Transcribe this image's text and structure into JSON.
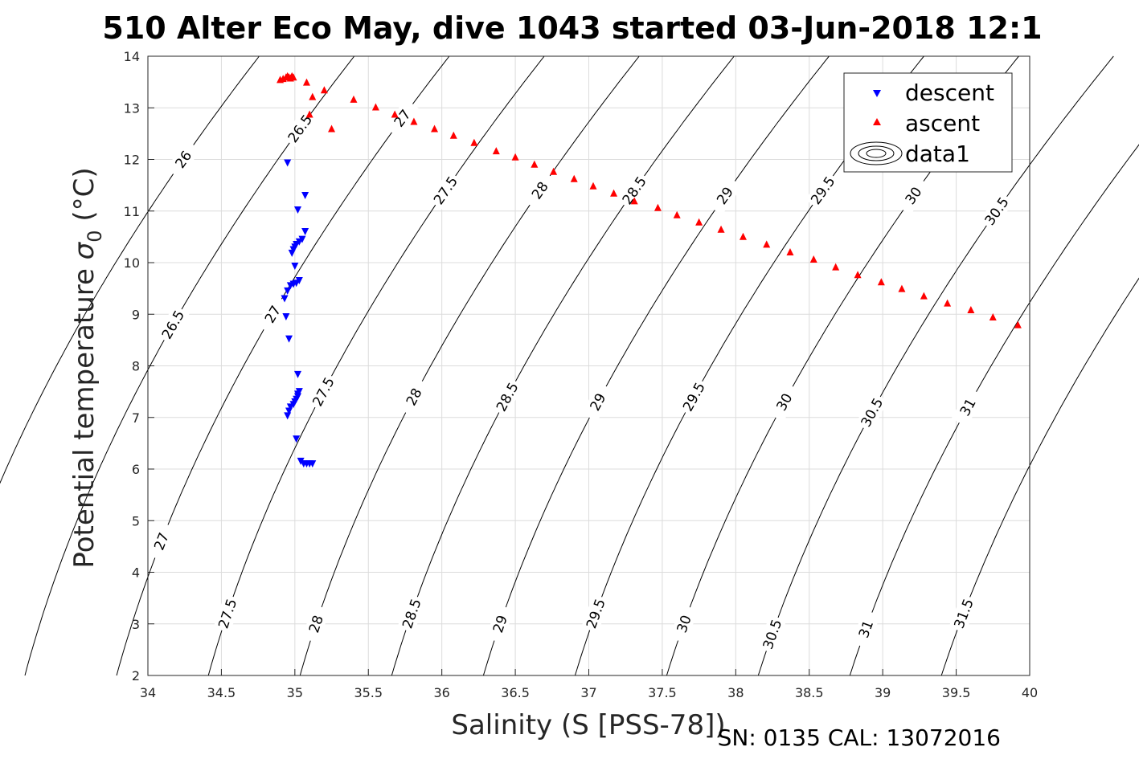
{
  "chart_data": {
    "type": "scatter",
    "title": "510 Alter Eco May, dive 1043 started 03-Jun-2018 12:1",
    "xlabel": "Salinity (S [PSS-78])",
    "ylabel_prefix": "Potential temperature ",
    "ylabel_symbol": "σ",
    "ylabel_sub": "0",
    "ylabel_suffix": " (°C)",
    "xlim": [
      34,
      40
    ],
    "ylim": [
      2,
      14
    ],
    "xticks": [
      "34",
      "34.5",
      "35",
      "35.5",
      "36",
      "36.5",
      "37",
      "37.5",
      "38",
      "38.5",
      "39",
      "39.5",
      "40"
    ],
    "yticks": [
      "2",
      "3",
      "4",
      "5",
      "6",
      "7",
      "8",
      "9",
      "10",
      "11",
      "12",
      "13",
      "14"
    ],
    "grid": true,
    "legend": {
      "placement": "top-right",
      "entries": [
        "descent",
        "ascent",
        "data1"
      ]
    },
    "footer": "SN: 0135  CAL: 13072016",
    "colors": {
      "descent": "#0000ff",
      "ascent": "#ff0000",
      "contour": "#000000",
      "grid": "#dcdcdc"
    },
    "series": [
      {
        "name": "descent",
        "marker": "triangle-down",
        "points": [
          [
            34.95,
            11.93
          ],
          [
            35.02,
            11.02
          ],
          [
            35.07,
            11.3
          ],
          [
            35.07,
            10.6
          ],
          [
            35.05,
            10.45
          ],
          [
            35.03,
            10.4
          ],
          [
            35.01,
            10.35
          ],
          [
            35.0,
            10.3
          ],
          [
            34.99,
            10.25
          ],
          [
            34.98,
            10.18
          ],
          [
            35.0,
            9.93
          ],
          [
            35.03,
            9.65
          ],
          [
            35.01,
            9.6
          ],
          [
            34.99,
            9.58
          ],
          [
            34.97,
            9.55
          ],
          [
            34.95,
            9.45
          ],
          [
            34.93,
            9.3
          ],
          [
            34.94,
            8.95
          ],
          [
            34.96,
            8.52
          ],
          [
            35.02,
            7.83
          ],
          [
            35.03,
            7.5
          ],
          [
            35.02,
            7.45
          ],
          [
            35.02,
            7.4
          ],
          [
            35.01,
            7.35
          ],
          [
            35.0,
            7.3
          ],
          [
            34.99,
            7.25
          ],
          [
            34.97,
            7.2
          ],
          [
            34.96,
            7.12
          ],
          [
            34.95,
            7.03
          ],
          [
            35.01,
            6.58
          ],
          [
            35.04,
            6.15
          ],
          [
            35.06,
            6.1
          ],
          [
            35.08,
            6.1
          ],
          [
            35.1,
            6.1
          ],
          [
            35.12,
            6.1
          ]
        ]
      },
      {
        "name": "ascent",
        "marker": "triangle-up",
        "points": [
          [
            34.9,
            13.55
          ],
          [
            34.92,
            13.57
          ],
          [
            34.94,
            13.6
          ],
          [
            34.95,
            13.62
          ],
          [
            34.96,
            13.6
          ],
          [
            34.97,
            13.58
          ],
          [
            34.98,
            13.62
          ],
          [
            34.99,
            13.6
          ],
          [
            35.08,
            13.5
          ],
          [
            35.2,
            13.35
          ],
          [
            35.12,
            13.22
          ],
          [
            35.1,
            12.88
          ],
          [
            35.25,
            12.6
          ],
          [
            35.4,
            13.17
          ],
          [
            35.55,
            13.02
          ],
          [
            35.68,
            12.88
          ],
          [
            35.81,
            12.74
          ],
          [
            35.95,
            12.6
          ],
          [
            36.08,
            12.47
          ],
          [
            36.22,
            12.33
          ],
          [
            36.37,
            12.17
          ],
          [
            36.5,
            12.05
          ],
          [
            36.63,
            11.91
          ],
          [
            36.76,
            11.77
          ],
          [
            36.9,
            11.63
          ],
          [
            37.03,
            11.49
          ],
          [
            37.17,
            11.35
          ],
          [
            37.31,
            11.2
          ],
          [
            37.47,
            11.07
          ],
          [
            37.6,
            10.93
          ],
          [
            37.75,
            10.79
          ],
          [
            37.9,
            10.65
          ],
          [
            38.05,
            10.51
          ],
          [
            38.21,
            10.36
          ],
          [
            38.37,
            10.21
          ],
          [
            38.53,
            10.07
          ],
          [
            38.68,
            9.92
          ],
          [
            38.83,
            9.77
          ],
          [
            38.99,
            9.63
          ],
          [
            39.13,
            9.5
          ],
          [
            39.28,
            9.36
          ],
          [
            39.44,
            9.22
          ],
          [
            39.6,
            9.09
          ],
          [
            39.75,
            8.95
          ],
          [
            39.92,
            8.8
          ]
        ]
      }
    ],
    "contours": [
      {
        "level": 26,
        "labels": [
          {
            "text": "26",
            "y": 12.0
          }
        ]
      },
      {
        "level": 26.5,
        "labels": [
          {
            "text": "26.5",
            "y": 12.6
          },
          {
            "text": "26.5",
            "y": 8.8
          }
        ]
      },
      {
        "level": 27,
        "labels": [
          {
            "text": "27",
            "y": 12.8
          },
          {
            "text": "27",
            "y": 9.0
          },
          {
            "text": "27",
            "y": 4.6
          }
        ]
      },
      {
        "level": 27.5,
        "labels": [
          {
            "text": "27.5",
            "y": 11.4
          },
          {
            "text": "27.5",
            "y": 7.5
          },
          {
            "text": "27.5",
            "y": 3.2
          }
        ]
      },
      {
        "level": 28,
        "labels": [
          {
            "text": "28",
            "y": 11.4
          },
          {
            "text": "28",
            "y": 7.4
          },
          {
            "text": "28",
            "y": 3.0
          }
        ]
      },
      {
        "level": 28.5,
        "labels": [
          {
            "text": "28.5",
            "y": 11.4
          },
          {
            "text": "28.5",
            "y": 7.4
          },
          {
            "text": "28.5",
            "y": 3.2
          }
        ]
      },
      {
        "level": 29,
        "labels": [
          {
            "text": "29",
            "y": 11.3
          },
          {
            "text": "29",
            "y": 7.3
          },
          {
            "text": "29",
            "y": 3.0
          }
        ]
      },
      {
        "level": 29.5,
        "labels": [
          {
            "text": "29.5",
            "y": 11.4
          },
          {
            "text": "29.5",
            "y": 7.4
          },
          {
            "text": "29.5",
            "y": 3.2
          }
        ]
      },
      {
        "level": 30,
        "labels": [
          {
            "text": "30",
            "y": 11.3
          },
          {
            "text": "30",
            "y": 7.3
          },
          {
            "text": "30",
            "y": 3.0
          }
        ]
      },
      {
        "level": 30.5,
        "labels": [
          {
            "text": "30.5",
            "y": 11.0
          },
          {
            "text": "30.5",
            "y": 7.1
          },
          {
            "text": "30.5",
            "y": 2.8
          }
        ]
      },
      {
        "level": 31,
        "labels": [
          {
            "text": "31",
            "y": 7.2
          },
          {
            "text": "31",
            "y": 2.9
          }
        ]
      },
      {
        "level": 31.5,
        "labels": [
          {
            "text": "31.5",
            "y": 3.2
          }
        ]
      }
    ]
  }
}
